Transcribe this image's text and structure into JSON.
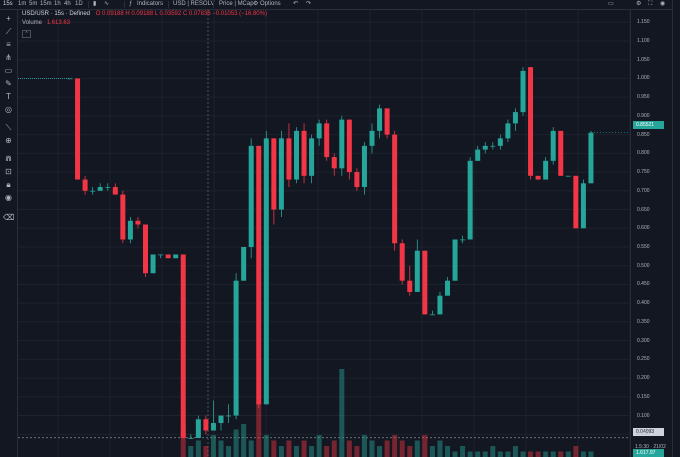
{
  "topbar": {
    "interval": "15s",
    "intervals": [
      "1m",
      "5m",
      "15m",
      "1h",
      "4h",
      "1D"
    ],
    "indicators": "Indicators",
    "currency": "USD | RESOLV",
    "price_mcap": "Price | MCap",
    "options": "Options"
  },
  "legend": {
    "symbol": "USD/USR · 15s · Defined",
    "ohlc": "O 0.09188  H 0.09188  L 0.03592  C 0.07836  −0.01053 (−16.80%)",
    "volume_label": "Volume",
    "volume_value": "1.613.63"
  },
  "axis": {
    "ticks": [
      "1.150",
      "1.100",
      "1.050",
      "1.000",
      "0.950",
      "0.900",
      "0.850",
      "0.800",
      "0.750",
      "0.700",
      "0.650",
      "0.600",
      "0.550",
      "0.500",
      "0.450",
      "0.400",
      "0.350",
      "0.300",
      "0.250",
      "0.200",
      "0.150",
      "0.100",
      "0.050"
    ],
    "last_price": "0.85521",
    "low_price": "0.04093",
    "mini_label": "1.5:30 · 21/02",
    "vol_tag": "1.617.97"
  },
  "colors": {
    "up": "#26a69a",
    "down": "#f23645",
    "bg": "#131722",
    "grid": "#1e222d"
  },
  "chart_data": {
    "type": "candlestick",
    "ylim": [
      0.0,
      1.18
    ],
    "candles": [
      {
        "o": 1.0,
        "h": 1.0,
        "l": 1.0,
        "c": 1.0
      },
      {
        "o": 1.0,
        "h": 1.0,
        "l": 0.73,
        "c": 0.73
      },
      {
        "o": 0.73,
        "h": 0.74,
        "l": 0.69,
        "c": 0.7
      },
      {
        "o": 0.7,
        "h": 0.71,
        "l": 0.69,
        "c": 0.7
      },
      {
        "o": 0.7,
        "h": 0.72,
        "l": 0.7,
        "c": 0.71
      },
      {
        "o": 0.71,
        "h": 0.72,
        "l": 0.7,
        "c": 0.71
      },
      {
        "o": 0.71,
        "h": 0.72,
        "l": 0.69,
        "c": 0.69
      },
      {
        "o": 0.69,
        "h": 0.7,
        "l": 0.56,
        "c": 0.57
      },
      {
        "o": 0.57,
        "h": 0.63,
        "l": 0.56,
        "c": 0.62
      },
      {
        "o": 0.62,
        "h": 0.63,
        "l": 0.6,
        "c": 0.61
      },
      {
        "o": 0.61,
        "h": 0.61,
        "l": 0.47,
        "c": 0.48
      },
      {
        "o": 0.48,
        "h": 0.53,
        "l": 0.48,
        "c": 0.53
      },
      {
        "o": 0.53,
        "h": 0.53,
        "l": 0.52,
        "c": 0.53
      },
      {
        "o": 0.53,
        "h": 0.53,
        "l": 0.52,
        "c": 0.52
      },
      {
        "o": 0.52,
        "h": 0.53,
        "l": 0.52,
        "c": 0.53
      },
      {
        "o": 0.53,
        "h": 0.53,
        "l": 0.04,
        "c": 0.04
      },
      {
        "o": 0.04,
        "h": 0.05,
        "l": 0.04,
        "c": 0.04
      },
      {
        "o": 0.04,
        "h": 0.1,
        "l": 0.04,
        "c": 0.09
      },
      {
        "o": 0.09,
        "h": 0.1,
        "l": 0.05,
        "c": 0.06
      },
      {
        "o": 0.06,
        "h": 0.14,
        "l": 0.06,
        "c": 0.08
      },
      {
        "o": 0.08,
        "h": 0.1,
        "l": 0.06,
        "c": 0.1
      },
      {
        "o": 0.1,
        "h": 0.13,
        "l": 0.08,
        "c": 0.1
      },
      {
        "o": 0.1,
        "h": 0.48,
        "l": 0.09,
        "c": 0.46
      },
      {
        "o": 0.46,
        "h": 0.55,
        "l": 0.46,
        "c": 0.55
      },
      {
        "o": 0.55,
        "h": 0.84,
        "l": 0.52,
        "c": 0.82
      },
      {
        "o": 0.82,
        "h": 0.82,
        "l": 0.12,
        "c": 0.13
      },
      {
        "o": 0.13,
        "h": 0.86,
        "l": 0.13,
        "c": 0.84
      },
      {
        "o": 0.84,
        "h": 0.84,
        "l": 0.61,
        "c": 0.65
      },
      {
        "o": 0.65,
        "h": 0.86,
        "l": 0.63,
        "c": 0.84
      },
      {
        "o": 0.84,
        "h": 0.88,
        "l": 0.71,
        "c": 0.73
      },
      {
        "o": 0.73,
        "h": 0.87,
        "l": 0.72,
        "c": 0.86
      },
      {
        "o": 0.86,
        "h": 0.88,
        "l": 0.72,
        "c": 0.74
      },
      {
        "o": 0.74,
        "h": 0.85,
        "l": 0.72,
        "c": 0.84
      },
      {
        "o": 0.84,
        "h": 0.89,
        "l": 0.82,
        "c": 0.88
      },
      {
        "o": 0.88,
        "h": 0.89,
        "l": 0.78,
        "c": 0.79
      },
      {
        "o": 0.79,
        "h": 0.8,
        "l": 0.74,
        "c": 0.76
      },
      {
        "o": 0.76,
        "h": 0.9,
        "l": 0.74,
        "c": 0.89
      },
      {
        "o": 0.89,
        "h": 0.89,
        "l": 0.73,
        "c": 0.75
      },
      {
        "o": 0.75,
        "h": 0.76,
        "l": 0.7,
        "c": 0.71
      },
      {
        "o": 0.71,
        "h": 0.83,
        "l": 0.69,
        "c": 0.82
      },
      {
        "o": 0.82,
        "h": 0.88,
        "l": 0.8,
        "c": 0.86
      },
      {
        "o": 0.86,
        "h": 0.93,
        "l": 0.84,
        "c": 0.92
      },
      {
        "o": 0.92,
        "h": 0.92,
        "l": 0.84,
        "c": 0.85
      },
      {
        "o": 0.85,
        "h": 0.86,
        "l": 0.54,
        "c": 0.56
      },
      {
        "o": 0.56,
        "h": 0.57,
        "l": 0.45,
        "c": 0.46
      },
      {
        "o": 0.46,
        "h": 0.5,
        "l": 0.42,
        "c": 0.43
      },
      {
        "o": 0.43,
        "h": 0.57,
        "l": 0.43,
        "c": 0.54
      },
      {
        "o": 0.54,
        "h": 0.54,
        "l": 0.37,
        "c": 0.37
      },
      {
        "o": 0.37,
        "h": 0.38,
        "l": 0.37,
        "c": 0.37
      },
      {
        "o": 0.37,
        "h": 0.43,
        "l": 0.37,
        "c": 0.42
      },
      {
        "o": 0.42,
        "h": 0.47,
        "l": 0.42,
        "c": 0.46
      },
      {
        "o": 0.46,
        "h": 0.57,
        "l": 0.46,
        "c": 0.57
      },
      {
        "o": 0.57,
        "h": 0.58,
        "l": 0.56,
        "c": 0.57
      },
      {
        "o": 0.57,
        "h": 0.79,
        "l": 0.57,
        "c": 0.78
      },
      {
        "o": 0.78,
        "h": 0.82,
        "l": 0.78,
        "c": 0.81
      },
      {
        "o": 0.81,
        "h": 0.83,
        "l": 0.8,
        "c": 0.82
      },
      {
        "o": 0.82,
        "h": 0.83,
        "l": 0.81,
        "c": 0.82
      },
      {
        "o": 0.82,
        "h": 0.85,
        "l": 0.81,
        "c": 0.84
      },
      {
        "o": 0.84,
        "h": 0.89,
        "l": 0.83,
        "c": 0.88
      },
      {
        "o": 0.88,
        "h": 0.92,
        "l": 0.86,
        "c": 0.91
      },
      {
        "o": 0.91,
        "h": 1.03,
        "l": 0.9,
        "c": 1.02
      },
      {
        "o": 1.03,
        "h": 1.03,
        "l": 0.73,
        "c": 0.74
      },
      {
        "o": 0.74,
        "h": 0.74,
        "l": 0.73,
        "c": 0.73
      },
      {
        "o": 0.73,
        "h": 0.79,
        "l": 0.73,
        "c": 0.78
      },
      {
        "o": 0.78,
        "h": 0.87,
        "l": 0.77,
        "c": 0.86
      },
      {
        "o": 0.86,
        "h": 0.86,
        "l": 0.74,
        "c": 0.74
      },
      {
        "o": 0.74,
        "h": 0.74,
        "l": 0.74,
        "c": 0.74
      },
      {
        "o": 0.74,
        "h": 0.74,
        "l": 0.6,
        "c": 0.6
      },
      {
        "o": 0.6,
        "h": 0.73,
        "l": 0.6,
        "c": 0.72
      },
      {
        "o": 0.72,
        "h": 0.86,
        "l": 0.72,
        "c": 0.855
      }
    ],
    "volumes": [
      0,
      0,
      0,
      0,
      0,
      0,
      0,
      0,
      0,
      0,
      0,
      0,
      0,
      0,
      0,
      0.5,
      0.2,
      0.3,
      0.2,
      0.4,
      0.3,
      0.2,
      0.5,
      0.6,
      0.3,
      1.0,
      0.4,
      0.3,
      0.2,
      0.3,
      0.2,
      0.3,
      0.2,
      0.4,
      0.2,
      0.3,
      1.6,
      0.3,
      0.2,
      0.4,
      0.3,
      0.2,
      0.3,
      0.4,
      0.3,
      0.2,
      0.3,
      0.4,
      0.2,
      0.3,
      0.2,
      0.1,
      0.2,
      0.1,
      0.1,
      0.1,
      0.2,
      0.1,
      0.1,
      0.2,
      0.1,
      0.1,
      0.1,
      0.1,
      0.1,
      0.1,
      0.1,
      0.2,
      0.1,
      0.1
    ]
  }
}
